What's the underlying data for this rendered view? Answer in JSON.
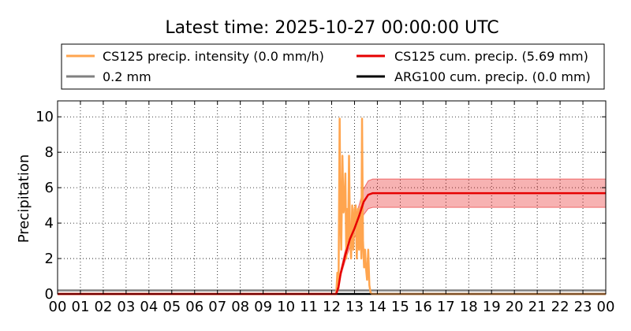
{
  "chart_data": {
    "type": "line",
    "title": "Latest time: 2025-10-27 00:00:00 UTC",
    "ylabel": "Precipitation",
    "xlabel": "",
    "x_tick_labels": [
      "00",
      "01",
      "02",
      "03",
      "04",
      "05",
      "06",
      "07",
      "08",
      "09",
      "10",
      "11",
      "12",
      "13",
      "14",
      "15",
      "16",
      "17",
      "18",
      "19",
      "20",
      "21",
      "22",
      "23",
      "00"
    ],
    "xlim": [
      0,
      24
    ],
    "ylim": [
      0,
      10.9
    ],
    "y_ticks": [
      0,
      2,
      4,
      6,
      8,
      10
    ],
    "grid": true,
    "legend": {
      "placement": "top",
      "entries": [
        {
          "label": "CS125 precip. intensity (0.0 mm/h)",
          "color": "#ffa54f"
        },
        {
          "label": "CS125 cum. precip. (5.69 mm)",
          "color": "#e60000"
        },
        {
          "label": "0.2 mm",
          "color": "#808080"
        },
        {
          "label": "ARG100 cum. precip. (0.0 mm)",
          "color": "#000000"
        }
      ]
    },
    "series": [
      {
        "name": "CS125 precip. intensity (0.0 mm/h)",
        "color": "#ffa54f",
        "x": [
          0,
          12.2,
          12.25,
          12.3,
          12.35,
          12.38,
          12.42,
          12.47,
          12.52,
          12.56,
          12.6,
          12.64,
          12.68,
          12.72,
          12.76,
          12.8,
          12.85,
          12.9,
          12.95,
          13.0,
          13.05,
          13.1,
          13.15,
          13.2,
          13.25,
          13.3,
          13.33,
          13.37,
          13.42,
          13.46,
          13.5,
          13.55,
          13.6,
          13.65,
          13.7,
          13.75,
          13.8,
          14.0,
          24
        ],
        "y": [
          0,
          0,
          1.2,
          0.3,
          9.9,
          4.5,
          2.5,
          7.8,
          4.6,
          5.0,
          6.8,
          2.0,
          4.8,
          3.0,
          7.8,
          3.5,
          2.0,
          5.0,
          2.5,
          4.8,
          5.0,
          2.0,
          4.8,
          2.5,
          4.9,
          2.0,
          9.9,
          3.0,
          1.5,
          2.5,
          1.5,
          0.8,
          2.5,
          0.5,
          0.1,
          0,
          0,
          0,
          0
        ]
      },
      {
        "name": "CS125 cum. precip. (5.69 mm)",
        "color": "#e60000",
        "band": 0.8,
        "x": [
          0,
          12.2,
          12.3,
          12.4,
          12.6,
          12.8,
          13.0,
          13.2,
          13.4,
          13.6,
          13.8,
          14.0,
          24
        ],
        "y": [
          0,
          0,
          0.4,
          1.2,
          2.2,
          3.1,
          3.7,
          4.4,
          5.2,
          5.6,
          5.69,
          5.69,
          5.69
        ]
      },
      {
        "name": "0.2 mm",
        "color": "#808080",
        "x": [
          0,
          24
        ],
        "y": [
          0.2,
          0.2
        ]
      },
      {
        "name": "ARG100 cum. precip. (0.0 mm)",
        "color": "#000000",
        "x": [
          0,
          24
        ],
        "y": [
          0,
          0
        ]
      }
    ]
  }
}
